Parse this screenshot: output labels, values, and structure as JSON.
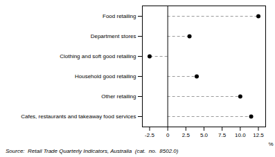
{
  "chart_data": {
    "type": "dot",
    "orientation": "horizontal",
    "categories": [
      "Cafes, restaurants and takeaway food services",
      "Other retailing",
      "Household good retailing",
      "Clothing and soft good retailing",
      "Department stores",
      "Food retailing"
    ],
    "values": [
      11.5,
      10.0,
      4.0,
      -2.5,
      3.0,
      12.5
    ],
    "color": "#000000",
    "marker": "circle",
    "line_style": "dashed",
    "xlabel": "%",
    "xlim": [
      -3.5,
      13.5
    ],
    "xticks": [
      -2.5,
      0,
      2.5,
      {
        "value": 5,
        "label": "5.0"
      },
      7.5,
      {
        "value": 10,
        "label": "10.0"
      },
      12.5
    ],
    "grid": false,
    "annotation": "Source:  Retail Trade Quarterly Indicators, Australia  (cat.  no.  8502.0)"
  }
}
